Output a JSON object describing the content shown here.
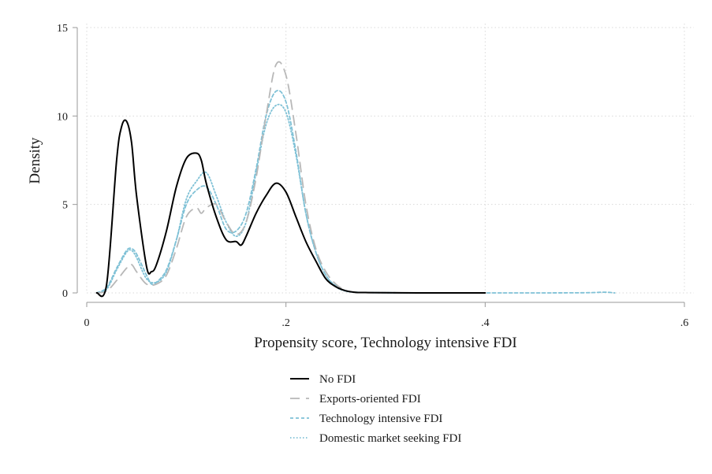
{
  "chart_data": {
    "type": "line",
    "title": "",
    "xlabel": "Propensity score, Technology intensive FDI",
    "ylabel": "Density",
    "xlim": [
      0,
      0.6
    ],
    "ylim": [
      0,
      15
    ],
    "x_ticks": [
      0,
      0.2,
      0.4,
      0.6
    ],
    "x_tick_labels": [
      "0",
      ".2",
      ".4",
      ".6"
    ],
    "y_ticks": [
      0,
      5,
      10,
      15
    ],
    "y_tick_labels": [
      "0",
      "5",
      "10",
      "15"
    ],
    "grid": true,
    "legend_position": "bottom",
    "series": [
      {
        "name": "No FDI",
        "color": "#000000",
        "dash": "solid",
        "x": [
          0.01,
          0.02,
          0.03,
          0.035,
          0.04,
          0.045,
          0.05,
          0.06,
          0.065,
          0.07,
          0.08,
          0.09,
          0.1,
          0.11,
          0.115,
          0.12,
          0.13,
          0.14,
          0.15,
          0.155,
          0.16,
          0.17,
          0.18,
          0.19,
          0.2,
          0.21,
          0.22,
          0.23,
          0.24,
          0.25,
          0.26,
          0.27,
          0.28,
          0.3,
          0.35,
          0.4
        ],
        "values": [
          0.0,
          0.5,
          7.5,
          9.4,
          9.7,
          8.5,
          5.5,
          1.5,
          1.2,
          1.6,
          3.5,
          6.0,
          7.6,
          7.9,
          7.5,
          6.2,
          4.3,
          3.0,
          2.9,
          2.7,
          3.2,
          4.5,
          5.5,
          6.2,
          5.7,
          4.3,
          2.9,
          1.8,
          0.8,
          0.35,
          0.12,
          0.03,
          0.02,
          0.01,
          0.0,
          0.0
        ]
      },
      {
        "name": "Exports-oriented FDI",
        "color": "#b8b8b8",
        "dash": "long-dash",
        "x": [
          0.01,
          0.02,
          0.03,
          0.04,
          0.045,
          0.05,
          0.06,
          0.07,
          0.08,
          0.09,
          0.1,
          0.11,
          0.115,
          0.12,
          0.13,
          0.14,
          0.15,
          0.16,
          0.17,
          0.18,
          0.19,
          0.2,
          0.21,
          0.22,
          0.23,
          0.24,
          0.25,
          0.26,
          0.27,
          0.28,
          0.3,
          0.35,
          0.4
        ],
        "values": [
          0.0,
          0.1,
          0.7,
          1.4,
          1.6,
          1.2,
          0.5,
          0.5,
          1.0,
          2.5,
          4.3,
          4.8,
          4.5,
          4.8,
          5.0,
          4.0,
          3.3,
          4.0,
          6.5,
          10.0,
          12.9,
          12.3,
          9.0,
          5.0,
          2.5,
          1.2,
          0.5,
          0.15,
          0.05,
          0.02,
          0.01,
          0.0,
          0.0
        ]
      },
      {
        "name": "Technology intensive FDI",
        "color": "#7fc1d6",
        "dash": "short-dash",
        "x": [
          0.01,
          0.02,
          0.03,
          0.04,
          0.045,
          0.05,
          0.06,
          0.065,
          0.07,
          0.08,
          0.09,
          0.1,
          0.11,
          0.12,
          0.13,
          0.14,
          0.15,
          0.16,
          0.17,
          0.18,
          0.19,
          0.2,
          0.21,
          0.22,
          0.23,
          0.24,
          0.25,
          0.26,
          0.27,
          0.28,
          0.3,
          0.35,
          0.4,
          0.45,
          0.5,
          0.52,
          0.53
        ],
        "values": [
          0.0,
          0.3,
          1.4,
          2.4,
          2.5,
          2.2,
          1.0,
          0.5,
          0.6,
          1.3,
          3.0,
          5.0,
          5.8,
          6.0,
          5.0,
          3.6,
          3.5,
          4.5,
          7.0,
          10.0,
          11.4,
          10.8,
          8.0,
          4.5,
          2.3,
          1.0,
          0.4,
          0.12,
          0.04,
          0.02,
          0.01,
          0.0,
          0.0,
          0.0,
          0.01,
          0.04,
          0.0
        ]
      },
      {
        "name": "Domestic market seeking FDI",
        "color": "#7fc1d6",
        "dash": "dotted",
        "x": [
          0.01,
          0.02,
          0.03,
          0.04,
          0.045,
          0.05,
          0.06,
          0.07,
          0.08,
          0.09,
          0.1,
          0.11,
          0.12,
          0.13,
          0.14,
          0.15,
          0.16,
          0.17,
          0.18,
          0.19,
          0.2,
          0.21,
          0.22,
          0.23,
          0.24,
          0.25,
          0.26,
          0.27,
          0.28,
          0.3,
          0.35,
          0.4
        ],
        "values": [
          0.0,
          0.2,
          1.3,
          2.3,
          2.4,
          2.0,
          0.8,
          0.6,
          1.2,
          3.0,
          5.3,
          6.3,
          6.8,
          5.5,
          4.0,
          3.2,
          4.0,
          6.8,
          9.5,
          10.6,
          10.2,
          7.8,
          4.5,
          2.3,
          1.0,
          0.35,
          0.1,
          0.04,
          0.02,
          0.01,
          0.0,
          0.0
        ]
      }
    ]
  }
}
